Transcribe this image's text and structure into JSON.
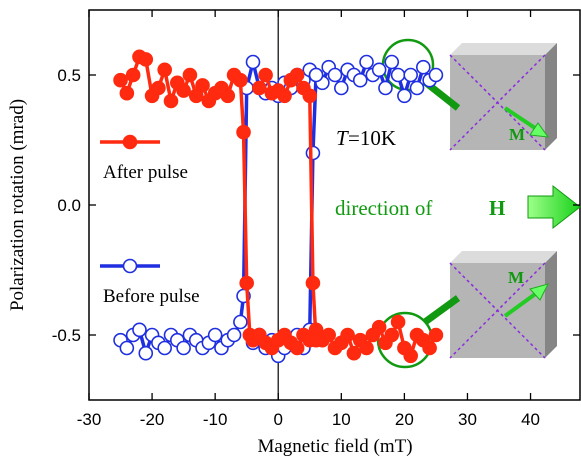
{
  "chart_data": {
    "type": "scatter",
    "x_label": "Magnetic field (mT)",
    "y_label": "Polarization rotation (mrad)",
    "xlim": [
      -30,
      48
    ],
    "ylim": [
      -0.75,
      0.75
    ],
    "xticks": [
      -30,
      -20,
      -10,
      0,
      10,
      20,
      30,
      40
    ],
    "yticks": [
      -0.5,
      {
        "value": 0,
        "label": "0.0"
      },
      0.5
    ],
    "legend": "left",
    "annotations": {
      "temperature_symbol": "T",
      "temperature_value": "=10K",
      "direction_text": "direction of",
      "field_symbol": "H",
      "inset_top_label": "M",
      "inset_bottom_label": "M"
    },
    "series": [
      {
        "name": "After pulse",
        "color": "#ff2a0f",
        "marker": "filled",
        "x": [
          -25,
          -24,
          -23,
          -22,
          -21,
          -20,
          -19,
          -18,
          -17,
          -16,
          -15,
          -14,
          -13,
          -12,
          -11,
          -10,
          -9,
          -8,
          -7,
          -6,
          -5.5,
          -5,
          -4.5,
          -4,
          -3,
          -2,
          -1,
          0,
          1,
          2,
          3,
          4,
          5,
          6,
          7,
          8,
          9,
          10,
          11,
          12,
          13,
          14,
          15,
          16,
          17,
          18,
          19,
          20,
          21,
          22,
          23,
          24,
          25,
          null,
          -3,
          -2,
          -1,
          0,
          1,
          2,
          3,
          4,
          5,
          5.5,
          6
        ],
        "values": [
          0.48,
          0.43,
          0.5,
          0.57,
          0.56,
          0.42,
          0.45,
          0.52,
          0.4,
          0.47,
          0.44,
          0.5,
          0.42,
          0.46,
          0.4,
          0.43,
          0.45,
          0.42,
          0.5,
          0.48,
          0.28,
          -0.3,
          -0.5,
          -0.52,
          -0.5,
          -0.53,
          -0.55,
          -0.52,
          -0.5,
          -0.53,
          -0.55,
          -0.5,
          -0.52,
          -0.48,
          -0.52,
          -0.5,
          -0.55,
          -0.53,
          -0.5,
          -0.57,
          -0.52,
          -0.55,
          -0.5,
          -0.47,
          -0.53,
          -0.5,
          -0.45,
          -0.55,
          -0.58,
          -0.5,
          -0.52,
          -0.55,
          -0.5,
          null,
          0.45,
          0.5,
          0.43,
          0.44,
          0.42,
          0.48,
          0.5,
          0.45,
          0.42,
          -0.3,
          -0.52
        ]
      },
      {
        "name": "Before pulse",
        "color": "#1f2fe0",
        "marker": "open",
        "x": [
          -25,
          -24,
          -23,
          -22,
          -21,
          -20,
          -19,
          -18,
          -17,
          -16,
          -15,
          -14,
          -13,
          -12,
          -11,
          -10,
          -9,
          -8,
          -7,
          -6,
          -5.5,
          -5,
          -4,
          -3,
          -2,
          -1,
          0,
          1,
          2,
          3,
          4,
          5,
          6,
          7,
          8,
          9,
          10,
          11,
          12,
          13,
          14,
          15,
          16,
          17,
          18,
          19,
          20,
          21,
          22,
          23,
          24,
          25,
          null,
          -4,
          -3,
          -2,
          -1,
          0,
          1,
          2,
          3,
          4,
          5,
          5.5,
          6
        ],
        "values": [
          -0.52,
          -0.55,
          -0.5,
          -0.48,
          -0.57,
          -0.5,
          -0.53,
          -0.55,
          -0.5,
          -0.52,
          -0.55,
          -0.5,
          -0.52,
          -0.55,
          -0.53,
          -0.5,
          -0.55,
          -0.52,
          -0.5,
          -0.45,
          -0.35,
          0.45,
          0.55,
          0.45,
          0.43,
          0.45,
          0.42,
          0.47,
          0.45,
          0.5,
          0.48,
          0.52,
          0.5,
          0.47,
          0.53,
          0.5,
          0.45,
          0.52,
          0.5,
          0.48,
          0.55,
          0.5,
          0.52,
          0.45,
          0.55,
          0.5,
          0.42,
          0.5,
          0.45,
          0.53,
          0.48,
          0.5,
          null,
          -0.53,
          -0.5,
          -0.55,
          -0.52,
          -0.58,
          -0.55,
          -0.52,
          -0.5,
          -0.55,
          -0.48,
          0.2,
          0.5
        ]
      }
    ]
  }
}
